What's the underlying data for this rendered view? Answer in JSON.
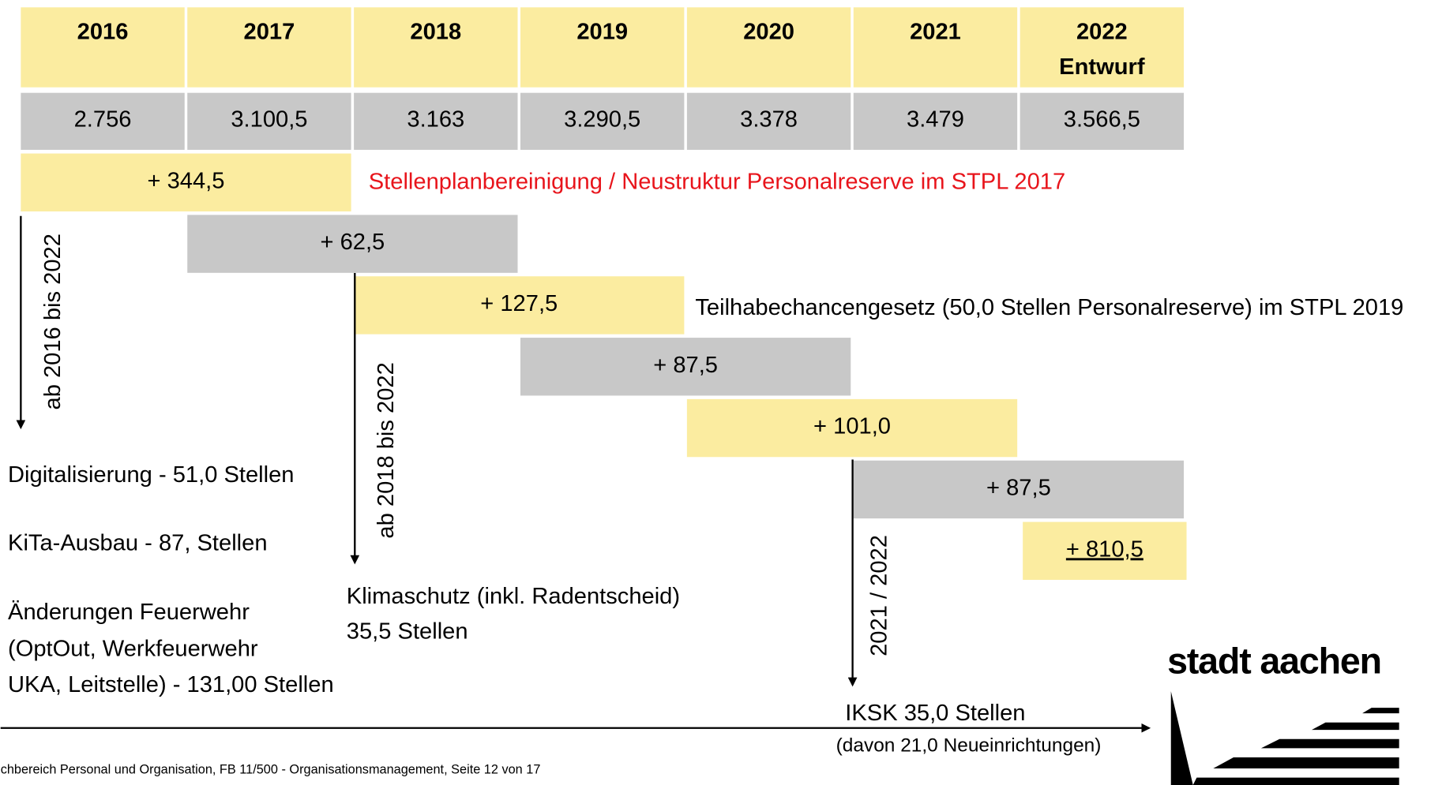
{
  "header": {
    "years": [
      "2016",
      "2017",
      "2018",
      "2019",
      "2020",
      "2021",
      "2022"
    ],
    "year_note": "Entwurf"
  },
  "totals": [
    "2.756",
    "3.100,5",
    "3.163",
    "3.290,5",
    "3.378",
    "3.479",
    "3.566,5"
  ],
  "steps": [
    "+ 344,5",
    "+ 62,5",
    "+ 127,5",
    "+ 87,5",
    "+ 101,0",
    "+ 87,5",
    "+ 810,5"
  ],
  "annotations": {
    "red_note": "Stellenplanbereinigung / Neustruktur Personalreserve im STPL 2017",
    "teilhabe": "Teilhabechancengesetz (50,0 Stellen Personalreserve) im STPL 2019",
    "arrow_2016": "ab 2016 bis 2022",
    "arrow_2018": "ab 2018 bis 2022",
    "arrow_2021": "2021 / 2022"
  },
  "notes": {
    "digital": "Digitalisierung - 51,0 Stellen",
    "kita": "KiTa-Ausbau - 87, Stellen",
    "feuerwehr": [
      "Änderungen Feuerwehr",
      "(OptOut, Werkfeuerwehr",
      "UKA, Leitstelle) - 131,00 Stellen"
    ],
    "klima": [
      "Klimaschutz (inkl. Radentscheid)",
      "35,5 Stellen"
    ],
    "iksk": [
      "IKSK 35,0 Stellen",
      "(davon 21,0 Neueinrichtungen)"
    ]
  },
  "footer": "chbereich Personal und Organisation, FB 11/500 - Organisationsmanagement, Seite 12 von 17",
  "logo": "stadt aachen"
}
